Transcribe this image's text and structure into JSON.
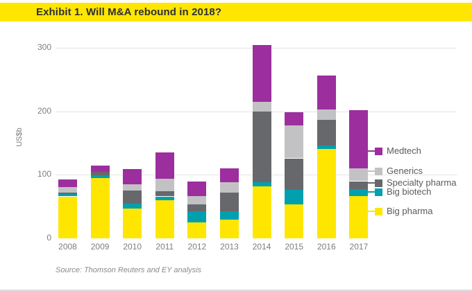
{
  "header": {
    "title": "Exhibit 1. Will M&A rebound in 2018?"
  },
  "source": "Source: Thomson Reuters and EY analysis",
  "colors": {
    "brand_yellow": "#ffe600",
    "medtech": "#9c2e9e",
    "generics": "#c2c2c5",
    "specialty_pharma": "#67686c",
    "big_biotech": "#00a0af",
    "big_pharma": "#ffe600",
    "grid": "#e4e4e4",
    "axis_text": "#7d7d7d",
    "title_text": "#2e2e38"
  },
  "chart_data": {
    "type": "bar",
    "stacked": true,
    "title": "Exhibit 1. Will M&A rebound in 2018?",
    "ylabel": "US$b",
    "xlabel": "",
    "ylim": [
      0,
      320
    ],
    "yticks": [
      0,
      100,
      200,
      300
    ],
    "grid": true,
    "legend_position": "right",
    "categories": [
      "2008",
      "2009",
      "2010",
      "2011",
      "2012",
      "2013",
      "2014",
      "2015",
      "2016",
      "2017"
    ],
    "series": [
      {
        "name": "Big pharma",
        "color": "#ffe600",
        "values": [
          66,
          95,
          47,
          60,
          25,
          29,
          82,
          53,
          141,
          67
        ]
      },
      {
        "name": "Big biotech",
        "color": "#00a0af",
        "values": [
          4,
          4,
          8,
          6,
          18,
          14,
          6,
          23,
          5,
          11
        ]
      },
      {
        "name": "Specialty pharma",
        "color": "#67686c",
        "values": [
          2,
          6,
          20,
          8,
          10,
          29,
          112,
          50,
          41,
          12
        ]
      },
      {
        "name": "Generics",
        "color": "#c2c2c5",
        "values": [
          9,
          0,
          10,
          20,
          14,
          16,
          15,
          52,
          16,
          20
        ]
      },
      {
        "name": "Medtech",
        "color": "#9c2e9e",
        "values": [
          12,
          10,
          24,
          41,
          22,
          22,
          89,
          21,
          53,
          92
        ]
      }
    ],
    "totals": [
      93,
      115,
      109,
      135,
      89,
      110,
      304,
      199,
      256,
      202
    ]
  },
  "legend": {
    "items": [
      {
        "label": "Medtech",
        "color": "#9c2e9e",
        "y": 218
      },
      {
        "label": "Generics",
        "color": "#c2c2c5",
        "y": 247
      },
      {
        "label": "Specialty pharma",
        "color": "#67686c",
        "y": 264
      },
      {
        "label": "Big biotech",
        "color": "#00a0af",
        "y": 277
      },
      {
        "label": "Big pharma",
        "color": "#ffe600",
        "y": 305
      }
    ]
  }
}
